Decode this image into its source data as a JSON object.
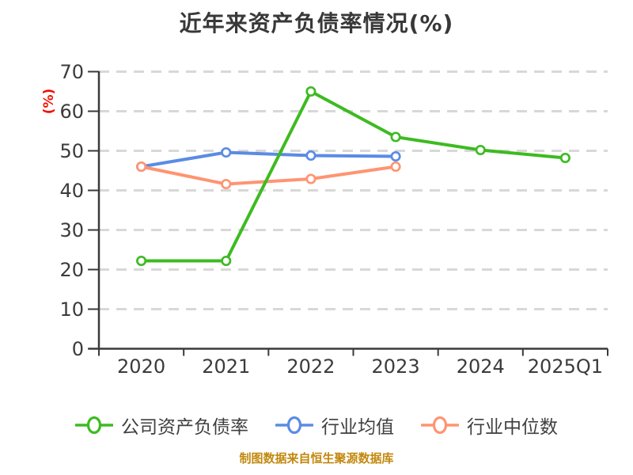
{
  "colors": {
    "company": "#3dbb21",
    "industry_mean": "#5b8be4",
    "industry_median": "#ff9472",
    "axis": "#3a3a3a",
    "grid": "#d8d8d8",
    "text": "#3b3b3b",
    "y_label": "#f21000",
    "footer_text": "#c2880e",
    "marker_fill": "#ffffff"
  },
  "chart_data": {
    "type": "line",
    "title": "近年来资产负债率情况(%)",
    "ylabel": "(%)",
    "xlabel": "",
    "categories": [
      "2020",
      "2021",
      "2022",
      "2023",
      "2024",
      "2025Q1"
    ],
    "ylim": [
      0,
      70
    ],
    "yticks": [
      0,
      10,
      20,
      30,
      40,
      50,
      60,
      70
    ],
    "grid": "horizontal-dashed",
    "legend_position": "bottom",
    "source_note": "制图数据来自恒生聚源数据库",
    "series": [
      {
        "name": "公司资产负债率",
        "color": "#3dbb21",
        "values": [
          22.2,
          22.2,
          65.0,
          53.5,
          50.2,
          48.2
        ]
      },
      {
        "name": "行业均值",
        "color": "#5b8be4",
        "values": [
          46.0,
          49.6,
          48.8,
          48.6,
          null,
          null
        ]
      },
      {
        "name": "行业中位数",
        "color": "#ff9472",
        "values": [
          46.0,
          41.6,
          42.9,
          46.0,
          null,
          null
        ]
      }
    ]
  }
}
